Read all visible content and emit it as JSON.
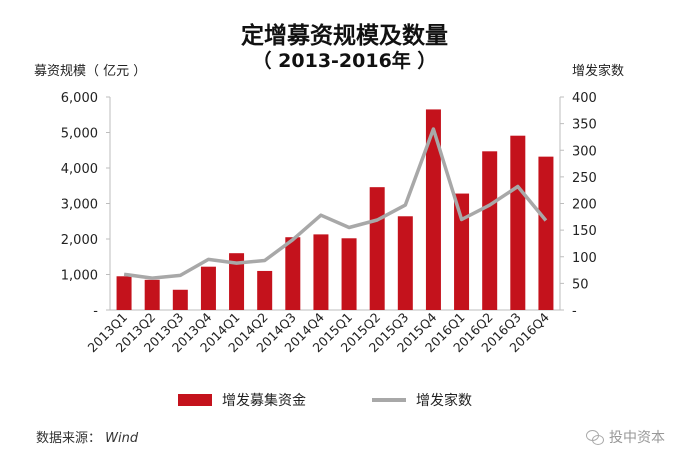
{
  "header": {
    "title": "定增募资规模及数量",
    "subtitle": "（ 2013-2016年 ）"
  },
  "axes": {
    "left_title": "募资规模（ 亿元 ）",
    "right_title": "增发家数"
  },
  "legend": {
    "bar_label": "增发募集资金",
    "line_label": "增发家数"
  },
  "footer": {
    "source_prefix": "数据来源：",
    "source_name": "Wind",
    "watermark": "投中资本"
  },
  "colors": {
    "bar": "#c4121c",
    "line": "#a8a8a8"
  },
  "chart_data": {
    "type": "bar",
    "categories": [
      "2013Q1",
      "2013Q2",
      "2013Q3",
      "2013Q4",
      "2014Q1",
      "2014Q2",
      "2014Q3",
      "2014Q4",
      "2015Q1",
      "2015Q2",
      "2015Q3",
      "2015Q4",
      "2016Q1",
      "2016Q2",
      "2016Q3",
      "2016Q4"
    ],
    "series": [
      {
        "name": "增发募集资金",
        "type": "bar",
        "axis": "left",
        "values": [
          950,
          850,
          570,
          1220,
          1600,
          1100,
          2050,
          2130,
          2020,
          3460,
          2640,
          5650,
          3280,
          4470,
          4910,
          4320
        ]
      },
      {
        "name": "增发家数",
        "type": "line",
        "axis": "right",
        "values": [
          67,
          60,
          65,
          95,
          88,
          93,
          132,
          178,
          155,
          169,
          197,
          340,
          170,
          197,
          232,
          168
        ]
      }
    ],
    "y_left": {
      "min": 0,
      "max": 6000,
      "ticks": [
        "-",
        "1,000",
        "2,000",
        "3,000",
        "4,000",
        "5,000",
        "6,000"
      ]
    },
    "y_right": {
      "min": 0,
      "max": 400,
      "ticks": [
        "-",
        "50",
        "100",
        "150",
        "200",
        "250",
        "300",
        "350",
        "400"
      ]
    },
    "grid": false,
    "legend_position": "bottom"
  }
}
